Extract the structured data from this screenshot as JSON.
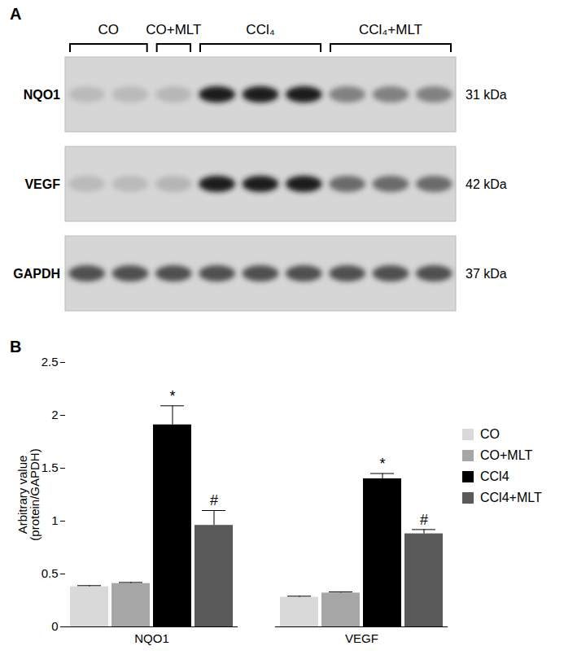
{
  "panel_a": {
    "label": "A",
    "groups": [
      {
        "label": "CO",
        "lanes": 2
      },
      {
        "label": "CO+MLT",
        "lanes": 1
      },
      {
        "label": "CCl₄",
        "lanes": 3
      },
      {
        "label": "CCl₄+MLT",
        "lanes": 3
      }
    ],
    "rows": [
      {
        "label": "NQO1",
        "size": "31 kDa"
      },
      {
        "label": "VEGF",
        "size": "42 kDa"
      },
      {
        "label": "GAPDH",
        "size": "37 kDa"
      }
    ]
  },
  "chart_data": {
    "label": "B",
    "type": "bar",
    "categories": [
      "NQO1",
      "VEGF"
    ],
    "ylabel": "Arbitrary value\n(protein/GAPDH)",
    "ylim": [
      0,
      2.5
    ],
    "yticks": [
      0,
      0.5,
      1,
      1.5,
      2,
      2.5
    ],
    "legend": "right",
    "series": [
      {
        "name": "CO",
        "color": "#d9d9d9",
        "values": [
          0.38,
          0.28
        ],
        "errors": [
          0.01,
          0.01
        ]
      },
      {
        "name": "CO+MLT",
        "color": "#a6a6a6",
        "values": [
          0.41,
          0.32
        ],
        "errors": [
          0.01,
          0.01
        ]
      },
      {
        "name": "CCl4",
        "color": "#000000",
        "values": [
          1.91,
          1.4
        ],
        "errors": [
          0.18,
          0.05
        ]
      },
      {
        "name": "CCl4+MLT",
        "color": "#595959",
        "values": [
          0.96,
          0.88
        ],
        "errors": [
          0.14,
          0.04
        ]
      }
    ],
    "annotations": [
      {
        "category": "NQO1",
        "series": "CCl4",
        "text": "*"
      },
      {
        "category": "NQO1",
        "series": "CCl4+MLT",
        "text": "#"
      },
      {
        "category": "VEGF",
        "series": "CCl4",
        "text": "*"
      },
      {
        "category": "VEGF",
        "series": "CCl4+MLT",
        "text": "#"
      }
    ]
  }
}
